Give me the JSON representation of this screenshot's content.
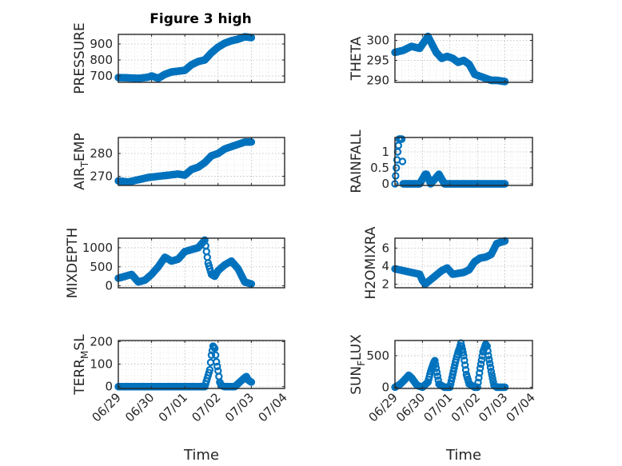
{
  "figure": {
    "title": "Figure 3 high"
  },
  "colors": {
    "marker": "#0072BD",
    "axis": "#262626"
  },
  "chart_data": [
    {
      "id": "pressure",
      "type": "scatter",
      "marker": "circle",
      "title": "Figure 3 high",
      "ylabel": "PRESSURE",
      "ylim": [
        660,
        960
      ],
      "yticks": [
        700,
        800,
        900
      ],
      "xlim": [
        "06/29",
        "07/04"
      ],
      "xticks": [
        "06/29",
        "06/30",
        "07/01",
        "07/02",
        "07/03",
        "07/04"
      ],
      "show_xticklabels": false,
      "grid": true,
      "x_days": [
        0.0,
        0.3,
        0.6,
        0.9,
        1.0,
        1.2,
        1.4,
        1.6,
        1.8,
        2.0,
        2.2,
        2.4,
        2.6,
        2.8,
        3.0,
        3.2,
        3.4,
        3.6,
        3.8,
        4.0
      ],
      "values": [
        690,
        688,
        685,
        692,
        700,
        685,
        710,
        725,
        730,
        735,
        770,
        790,
        800,
        845,
        880,
        905,
        920,
        930,
        945,
        940
      ]
    },
    {
      "id": "theta",
      "type": "scatter",
      "marker": "circle",
      "ylabel": "THETA",
      "ylim": [
        289.5,
        301.5
      ],
      "yticks": [
        290,
        295,
        300
      ],
      "xlim": [
        "06/29",
        "07/04"
      ],
      "xticks": [
        "06/29",
        "06/30",
        "07/01",
        "07/02",
        "07/03",
        "07/04"
      ],
      "show_xticklabels": false,
      "grid": true,
      "x_days": [
        0.0,
        0.3,
        0.6,
        0.9,
        1.1,
        1.2,
        1.35,
        1.5,
        1.7,
        1.9,
        2.1,
        2.3,
        2.5,
        2.7,
        2.9,
        3.1,
        3.3,
        3.5,
        3.7,
        3.9,
        4.0
      ],
      "values": [
        297,
        297.5,
        298.5,
        298,
        300,
        301,
        299,
        297,
        295.5,
        296,
        295.5,
        294.5,
        295,
        294,
        291.5,
        291,
        290.5,
        290,
        290,
        289.8,
        289.7
      ]
    },
    {
      "id": "air_temp",
      "type": "scatter",
      "marker": "circle",
      "ylabel": "AIR_TEMP",
      "ylim": [
        266,
        287
      ],
      "yticks": [
        270,
        280
      ],
      "xlim": [
        "06/29",
        "07/04"
      ],
      "xticks": [
        "06/29",
        "06/30",
        "07/01",
        "07/02",
        "07/03",
        "07/04"
      ],
      "show_xticklabels": false,
      "grid": true,
      "x_days": [
        0.0,
        0.3,
        0.6,
        0.9,
        1.2,
        1.5,
        1.8,
        2.0,
        2.2,
        2.4,
        2.6,
        2.8,
        3.0,
        3.2,
        3.4,
        3.6,
        3.8,
        4.0
      ],
      "values": [
        268,
        267.5,
        268.5,
        269.5,
        270,
        270.5,
        271,
        270.5,
        273,
        274,
        276,
        279,
        280,
        282,
        283,
        284,
        285,
        285
      ]
    },
    {
      "id": "rainfall",
      "type": "scatter",
      "marker": "circle",
      "ylabel": "RAINFALL",
      "ylim": [
        -0.05,
        1.45
      ],
      "yticks": [
        0,
        0.5,
        1
      ],
      "xlim": [
        "06/29",
        "07/04"
      ],
      "xticks": [
        "06/29",
        "06/30",
        "07/01",
        "07/02",
        "07/03",
        "07/04"
      ],
      "show_xticklabels": false,
      "grid": true,
      "x_days": [
        0.0,
        0.1,
        0.15,
        0.2,
        0.25,
        0.3,
        0.6,
        0.9,
        1.1,
        1.15,
        1.3,
        1.6,
        1.8,
        2.0,
        2.3,
        2.6,
        2.9,
        3.2,
        3.5,
        3.8,
        4.0
      ],
      "values": [
        0,
        1.0,
        1.4,
        1.4,
        1.4,
        0,
        0,
        0,
        0.3,
        0.3,
        0,
        0.3,
        0,
        0,
        0,
        0,
        0,
        0,
        0,
        0,
        0
      ]
    },
    {
      "id": "mixdepth",
      "type": "scatter",
      "marker": "circle",
      "ylabel": "MIXDEPTH",
      "ylim": [
        -50,
        1250
      ],
      "yticks": [
        0,
        500,
        1000
      ],
      "xlim": [
        "06/29",
        "07/04"
      ],
      "xticks": [
        "06/29",
        "06/30",
        "07/01",
        "07/02",
        "07/03",
        "07/04"
      ],
      "show_xticklabels": false,
      "grid": true,
      "x_days": [
        0.0,
        0.2,
        0.4,
        0.6,
        0.8,
        1.0,
        1.2,
        1.4,
        1.6,
        1.8,
        2.0,
        2.2,
        2.4,
        2.6,
        2.7,
        2.8,
        2.9,
        3.0,
        3.2,
        3.4,
        3.6,
        3.8,
        4.0
      ],
      "values": [
        200,
        250,
        300,
        100,
        150,
        300,
        500,
        750,
        650,
        700,
        900,
        950,
        1000,
        1200,
        600,
        300,
        250,
        400,
        550,
        650,
        450,
        100,
        50
      ]
    },
    {
      "id": "h2omixra",
      "type": "scatter",
      "marker": "circle",
      "ylabel": "H2OMIXRA",
      "ylim": [
        1.6,
        7.1
      ],
      "yticks": [
        2,
        4,
        6
      ],
      "xlim": [
        "06/29",
        "07/04"
      ],
      "xticks": [
        "06/29",
        "06/30",
        "07/01",
        "07/02",
        "07/03",
        "07/04"
      ],
      "show_xticklabels": false,
      "grid": true,
      "x_days": [
        0.0,
        0.3,
        0.6,
        0.9,
        1.0,
        1.1,
        1.3,
        1.5,
        1.7,
        1.9,
        2.1,
        2.3,
        2.5,
        2.7,
        2.9,
        3.1,
        3.3,
        3.5,
        3.7,
        3.9,
        4.0
      ],
      "values": [
        3.7,
        3.5,
        3.3,
        3.1,
        2.4,
        2.0,
        2.5,
        3.0,
        3.5,
        3.8,
        3.1,
        3.2,
        3.3,
        3.6,
        4.5,
        4.9,
        5.0,
        5.3,
        6.5,
        6.7,
        6.8
      ]
    },
    {
      "id": "terr_msl",
      "type": "scatter",
      "marker": "circle",
      "ylabel": "TERR_MSL",
      "ylim": [
        -8,
        205
      ],
      "yticks": [
        0,
        100,
        200
      ],
      "xlim": [
        "06/29",
        "07/04"
      ],
      "xticks": [
        "06/29",
        "06/30",
        "07/01",
        "07/02",
        "07/03",
        "07/04"
      ],
      "show_xticklabels": true,
      "xlabel": "Time",
      "grid": true,
      "x_days": [
        0.0,
        0.4,
        0.8,
        1.2,
        1.6,
        2.0,
        2.3,
        2.6,
        2.75,
        2.8,
        2.85,
        2.9,
        2.95,
        3.0,
        3.05,
        3.1,
        3.2,
        3.5,
        3.8,
        3.85,
        3.9,
        4.0
      ],
      "values": [
        0,
        0,
        0,
        0,
        0,
        0,
        0,
        0,
        75,
        140,
        180,
        170,
        110,
        70,
        20,
        5,
        0,
        0,
        40,
        45,
        30,
        20
      ]
    },
    {
      "id": "sun_flux",
      "type": "scatter",
      "marker": "circle",
      "ylabel": "SUN_FLUX",
      "ylim": [
        -20,
        740
      ],
      "yticks": [
        0,
        500
      ],
      "xlim": [
        "06/29",
        "07/04"
      ],
      "xticks": [
        "06/29",
        "06/30",
        "07/01",
        "07/02",
        "07/03",
        "07/04"
      ],
      "show_xticklabels": true,
      "xlabel": "Time",
      "grid": true,
      "x_days": [
        0.0,
        0.2,
        0.4,
        0.5,
        0.6,
        0.8,
        1.0,
        1.2,
        1.3,
        1.4,
        1.45,
        1.5,
        1.6,
        1.8,
        2.0,
        2.1,
        2.2,
        2.3,
        2.35,
        2.4,
        2.5,
        2.6,
        2.7,
        2.9,
        3.0,
        3.1,
        3.2,
        3.3,
        3.35,
        3.4,
        3.5,
        3.6,
        3.7,
        3.8,
        3.9,
        4.0
      ],
      "values": [
        0,
        50,
        140,
        190,
        150,
        30,
        0,
        80,
        250,
        380,
        420,
        300,
        50,
        0,
        0,
        200,
        400,
        560,
        620,
        700,
        500,
        200,
        50,
        0,
        0,
        300,
        560,
        680,
        650,
        500,
        250,
        30,
        0,
        0,
        0,
        0
      ]
    }
  ]
}
